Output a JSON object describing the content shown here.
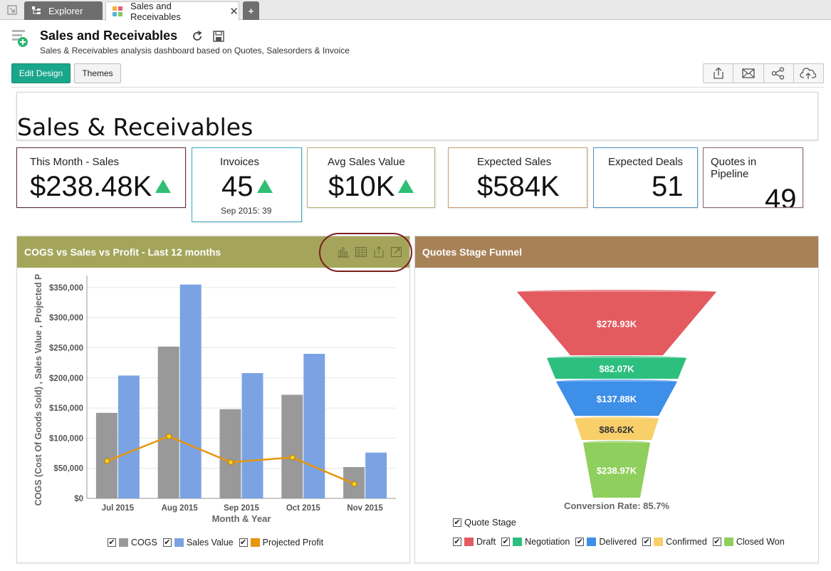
{
  "tabs": {
    "explorer": "Explorer",
    "sales": "Sales and Receivables",
    "add": "+"
  },
  "header": {
    "title": "Sales and Receivables",
    "subtitle": "Sales & Receivables analysis dashboard based on Quotes, Salesorders & Invoice",
    "edit_design": "Edit Design",
    "themes": "Themes",
    "actions": [
      "share-export-icon",
      "mail-icon",
      "share-icon",
      "cloud-upload-icon"
    ]
  },
  "banner": {
    "title": "Sales & Receivables"
  },
  "kpis": [
    {
      "label": "This Month - Sales",
      "value": "$238.48K",
      "trend": "up",
      "border": "#5a2a3a"
    },
    {
      "label": "Invoices",
      "value": "45",
      "trend": "up",
      "sub": "Sep 2015: 39",
      "border": "#3aa6c7"
    },
    {
      "label": "Avg Sales Value",
      "value": "$10K",
      "trend": "up",
      "border": "#b8b077"
    },
    {
      "label": "Expected Sales",
      "value": "$584K",
      "border": "#c89a72"
    },
    {
      "label": "Expected Deals",
      "value": "51",
      "border": "#4d8fc4"
    },
    {
      "label": "Quotes in Pipeline",
      "value": "49",
      "border": "#8a6477"
    }
  ],
  "panels": {
    "cogs": {
      "title": "COGS vs Sales vs Profit - Last 12 months",
      "header_color": "#a4a55a"
    },
    "funnel": {
      "title": "Quotes Stage Funnel",
      "header_color": "#a88257"
    }
  },
  "chart_data": [
    {
      "type": "bar",
      "categories": [
        "Jul 2015",
        "Aug 2015",
        "Sep 2015",
        "Oct 2015",
        "Nov 2015"
      ],
      "series": [
        {
          "name": "COGS",
          "type": "bar",
          "color": "#999999",
          "values": [
            142000,
            252000,
            148000,
            172000,
            52000
          ]
        },
        {
          "name": "Sales Value",
          "type": "bar",
          "color": "#7ba3e3",
          "values": [
            204000,
            355000,
            208000,
            240000,
            76000
          ]
        },
        {
          "name": "Projected Profit",
          "type": "line",
          "color": "#e8960c",
          "values": [
            62000,
            103000,
            60000,
            68000,
            24000
          ]
        }
      ],
      "xlabel": "Month & Year",
      "ylabel": "COGS (Cost Of Goods Sold) , Sales Value , Projected P",
      "yticks": [
        "$0",
        "$50,000",
        "$100,000",
        "$150,000",
        "$200,000",
        "$250,000",
        "$300,000",
        "$350,000"
      ],
      "ylim": [
        0,
        370000
      ],
      "grid": true,
      "legend": "bottom"
    },
    {
      "type": "funnel",
      "legend_title": "Quote Stage",
      "categories": [
        "Draft",
        "Negotiation",
        "Delivered",
        "Confirmed",
        "Closed Won"
      ],
      "labels": [
        "$278.93K",
        "$82.07K",
        "$137.88K",
        "$86.62K",
        "$238.97K"
      ],
      "values": [
        278930,
        82070,
        137880,
        86620,
        238970
      ],
      "colors": [
        "#e35a5f",
        "#2dbf7e",
        "#3d8fe8",
        "#f9cf6a",
        "#8fcf5d"
      ],
      "footer": "Conversion Rate: 85.7%",
      "legend": "bottom"
    }
  ]
}
